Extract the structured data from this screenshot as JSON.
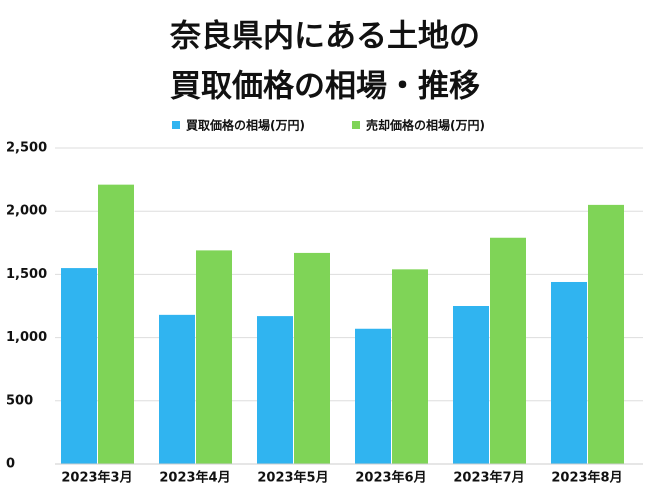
{
  "chart_data": {
    "type": "bar",
    "title": [
      "奈良県内にある土地の",
      "買取価格の相場・推移"
    ],
    "categories": [
      "2023年3月",
      "2023年4月",
      "2023年5月",
      "2023年6月",
      "2023年7月",
      "2023年8月"
    ],
    "series": [
      {
        "name": "買取価格の相場(万円)",
        "color": "#30b4f0",
        "values": [
          1550,
          1180,
          1170,
          1070,
          1250,
          1440
        ]
      },
      {
        "name": "売却価格の相場(万円)",
        "color": "#7fd457",
        "values": [
          2210,
          1690,
          1670,
          1540,
          1790,
          2050
        ]
      }
    ],
    "ylim": [
      0,
      2500
    ],
    "yticks": [
      0,
      500,
      {
        "value": 1000,
        "label": "1,000"
      },
      {
        "value": 1500,
        "label": "1,500"
      },
      {
        "value": 2000,
        "label": "2,000"
      },
      {
        "value": 2500,
        "label": "2,500"
      }
    ],
    "grid": true,
    "legend": "top"
  }
}
